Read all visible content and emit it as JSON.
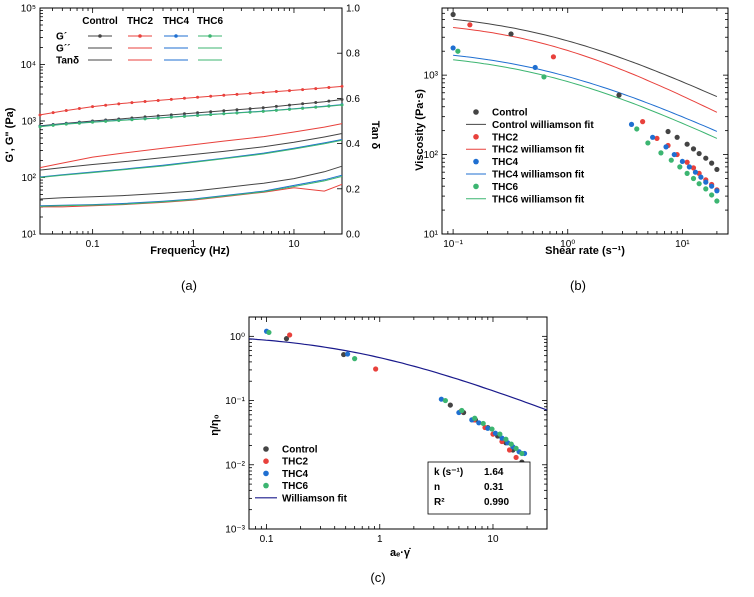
{
  "colors": {
    "control": "#444444",
    "thc2": "#e8413c",
    "thc4": "#1f6fd1",
    "thc6": "#3cb571",
    "fit": "#1a1a8c"
  },
  "chart_data": [
    {
      "id": "a",
      "type": "line",
      "caption": "(a)",
      "xlabel": "Frequency (Hz)",
      "ylabel": "G', G\" (Pa)",
      "y2label": "Tan δ",
      "xlim": [
        0.03,
        30
      ],
      "ylim": [
        10,
        100000
      ],
      "y2lim": [
        0,
        1.0
      ],
      "xticks": [
        "0.1",
        "1",
        "10"
      ],
      "yticks": [
        "10¹",
        "10²",
        "10³",
        "10⁴",
        "10⁵"
      ],
      "y2ticks": [
        "0.0",
        "0.2",
        "0.4",
        "0.6",
        "0.8",
        "1.0"
      ],
      "legend": {
        "row_labels": [
          "G´",
          "G´´",
          "Tanδ"
        ],
        "col_labels": [
          "Control",
          "THC2",
          "THC4",
          "THC6"
        ]
      },
      "x": [
        0.03,
        0.05,
        0.1,
        0.2,
        0.5,
        1,
        2,
        5,
        10,
        20,
        30
      ],
      "series": [
        {
          "name": "Control G'",
          "group": "control",
          "kind": "G1",
          "values": [
            820,
            900,
            1000,
            1100,
            1250,
            1380,
            1520,
            1720,
            1950,
            2200,
            2400
          ]
        },
        {
          "name": "THC2 G'",
          "group": "thc2",
          "kind": "G1",
          "values": [
            1280,
            1500,
            1800,
            2050,
            2350,
            2600,
            2850,
            3200,
            3500,
            3850,
            4100
          ]
        },
        {
          "name": "THC4 G'",
          "group": "thc4",
          "kind": "G1",
          "values": [
            800,
            880,
            960,
            1040,
            1150,
            1250,
            1350,
            1500,
            1650,
            1820,
            1950
          ]
        },
        {
          "name": "THC6 G'",
          "group": "thc6",
          "kind": "G1",
          "values": [
            790,
            870,
            950,
            1030,
            1140,
            1240,
            1340,
            1480,
            1630,
            1800,
            1920
          ]
        },
        {
          "name": "Control G''",
          "group": "control",
          "kind": "G2",
          "values": [
            135,
            150,
            170,
            190,
            225,
            255,
            290,
            350,
            420,
            520,
            600
          ]
        },
        {
          "name": "THC2 G''",
          "group": "thc2",
          "kind": "G2",
          "values": [
            150,
            180,
            230,
            270,
            330,
            380,
            440,
            530,
            640,
            780,
            900
          ]
        },
        {
          "name": "THC4 G''",
          "group": "thc4",
          "kind": "G2",
          "values": [
            102,
            112,
            125,
            140,
            165,
            190,
            220,
            270,
            330,
            410,
            470
          ]
        },
        {
          "name": "THC6 G''",
          "group": "thc6",
          "kind": "G2",
          "values": [
            100,
            110,
            122,
            137,
            160,
            185,
            215,
            262,
            320,
            395,
            455
          ]
        },
        {
          "name": "Control Tanδ",
          "group": "control",
          "kind": "T",
          "values": [
            0.155,
            0.16,
            0.165,
            0.17,
            0.18,
            0.19,
            0.205,
            0.225,
            0.245,
            0.275,
            0.3
          ]
        },
        {
          "name": "THC2 Tanδ",
          "group": "thc2",
          "kind": "T",
          "values": [
            0.12,
            0.12,
            0.125,
            0.13,
            0.14,
            0.15,
            0.165,
            0.185,
            0.205,
            0.19,
            0.22
          ]
        },
        {
          "name": "THC4 Tanδ",
          "group": "thc4",
          "kind": "T",
          "values": [
            0.125,
            0.127,
            0.13,
            0.135,
            0.145,
            0.155,
            0.17,
            0.19,
            0.215,
            0.24,
            0.26
          ]
        },
        {
          "name": "THC6 Tanδ",
          "group": "thc6",
          "kind": "T",
          "values": [
            0.122,
            0.125,
            0.128,
            0.132,
            0.142,
            0.152,
            0.167,
            0.187,
            0.21,
            0.235,
            0.255
          ]
        }
      ]
    },
    {
      "id": "b",
      "type": "scatter",
      "caption": "(b)",
      "xlabel": "Shear rate (s⁻¹)",
      "ylabel": "Viscosity (Pa·s)",
      "xlim": [
        0.08,
        25
      ],
      "ylim": [
        10,
        7000
      ],
      "xticks": [
        "10⁻¹",
        "10⁰",
        "10¹"
      ],
      "yticks": [
        "10¹",
        "10²",
        "10³"
      ],
      "legend": [
        "Control",
        "Control williamson fit",
        "THC2",
        "THC2 williamson fit",
        "THC4",
        "THC4 williamson fit",
        "THC6",
        "THC6 williamson fit"
      ],
      "series": [
        {
          "name": "Control",
          "group": "control",
          "x": [
            0.1,
            0.32,
            2.8,
            7.5,
            9,
            11,
            12.5,
            14,
            16,
            18,
            20
          ],
          "values": [
            5800,
            3300,
            560,
            195,
            165,
            135,
            118,
            103,
            90,
            78,
            65
          ]
        },
        {
          "name": "THC2",
          "group": "thc2",
          "x": [
            0.14,
            0.75,
            4.5,
            6,
            7.5,
            9,
            11,
            12.5,
            14,
            16,
            18,
            20
          ],
          "values": [
            4300,
            1700,
            260,
            160,
            130,
            100,
            80,
            68,
            58,
            48,
            42,
            36
          ]
        },
        {
          "name": "THC4",
          "group": "thc4",
          "x": [
            0.1,
            0.52,
            3.6,
            5.5,
            7.2,
            8.5,
            10,
            11.5,
            13,
            14.5,
            16,
            18,
            20
          ],
          "values": [
            2200,
            1250,
            240,
            165,
            125,
            100,
            82,
            70,
            60,
            52,
            45,
            40,
            35
          ]
        },
        {
          "name": "THC6",
          "group": "thc6",
          "x": [
            0.11,
            0.62,
            4,
            5,
            6.5,
            8,
            9.5,
            11,
            12.5,
            14,
            16,
            18,
            20
          ],
          "values": [
            2000,
            950,
            210,
            140,
            105,
            85,
            70,
            58,
            50,
            43,
            37,
            31,
            26
          ]
        }
      ],
      "fits": [
        {
          "name": "Control williamson fit",
          "group": "control",
          "eta0": 6500,
          "k": 1.64,
          "n": 0.31
        },
        {
          "name": "THC2 williamson fit",
          "group": "thc2",
          "eta0": 5000,
          "k": 1.64,
          "n": 0.25
        },
        {
          "name": "THC4 williamson fit",
          "group": "thc4",
          "eta0": 2300,
          "k": 1.64,
          "n": 0.32
        },
        {
          "name": "THC6 williamson fit",
          "group": "thc6",
          "eta0": 2000,
          "k": 1.64,
          "n": 0.3
        }
      ]
    },
    {
      "id": "c",
      "type": "scatter",
      "caption": "(c)",
      "xlabel": "aₑ·γ̇",
      "ylabel": "η/η₀",
      "xlim": [
        0.07,
        30
      ],
      "ylim": [
        0.001,
        2
      ],
      "xticks": [
        "0.1",
        "1",
        "10"
      ],
      "yticks": [
        "10⁻³",
        "10⁻²",
        "10⁻¹",
        "10⁰"
      ],
      "legend": [
        "Control",
        "THC2",
        "THC4",
        "THC6",
        "Williamson fit"
      ],
      "params": {
        "k_label": "k (s⁻¹)",
        "k": "1.64",
        "n_label": "n",
        "n": "0.31",
        "r2_label": "R²",
        "r2": "0.990"
      },
      "fit": {
        "k": 1.64,
        "n": 0.31
      },
      "series": [
        {
          "name": "Control",
          "group": "control",
          "x": [
            0.15,
            0.48,
            4.2,
            5.5,
            7,
            9,
            11,
            13,
            15,
            18
          ],
          "values": [
            0.92,
            0.52,
            0.085,
            0.065,
            0.05,
            0.038,
            0.028,
            0.022,
            0.017,
            0.011
          ]
        },
        {
          "name": "THC2",
          "group": "thc2",
          "x": [
            0.16,
            0.92,
            5.2,
            6.8,
            8.5,
            10,
            12,
            14,
            16,
            18.5
          ],
          "values": [
            1.05,
            0.31,
            0.068,
            0.05,
            0.038,
            0.03,
            0.023,
            0.017,
            0.013,
            0.01
          ]
        },
        {
          "name": "THC4",
          "group": "thc4",
          "x": [
            0.1,
            0.52,
            3.5,
            5,
            6.5,
            7.5,
            9,
            10.5,
            12,
            13.5,
            15,
            17,
            19
          ],
          "values": [
            1.2,
            0.53,
            0.105,
            0.065,
            0.05,
            0.045,
            0.037,
            0.031,
            0.026,
            0.022,
            0.019,
            0.016,
            0.015
          ]
        },
        {
          "name": "THC6",
          "group": "thc6",
          "x": [
            0.105,
            0.6,
            3.8,
            5.3,
            6.9,
            8.2,
            9.8,
            11.5,
            13,
            14.5,
            16,
            18
          ],
          "values": [
            1.15,
            0.45,
            0.1,
            0.07,
            0.053,
            0.044,
            0.036,
            0.03,
            0.025,
            0.021,
            0.018,
            0.015
          ]
        }
      ]
    }
  ]
}
